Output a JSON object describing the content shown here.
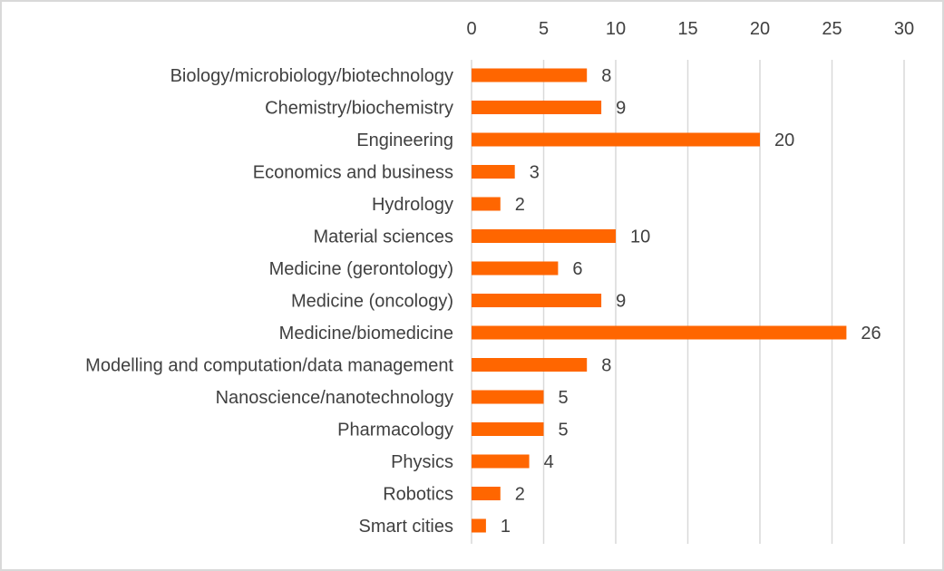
{
  "chart_data": {
    "type": "bar",
    "orientation": "horizontal",
    "categories": [
      "Biology/microbiology/biotechnology",
      "Chemistry/biochemistry",
      "Engineering",
      "Economics and business",
      "Hydrology",
      "Material sciences",
      "Medicine (gerontology)",
      "Medicine (oncology)",
      "Medicine/biomedicine",
      "Modelling and computation/data management",
      "Nanoscience/nanotechnology",
      "Pharmacology",
      "Physics",
      "Robotics",
      "Smart cities"
    ],
    "values": [
      8,
      9,
      20,
      3,
      2,
      10,
      6,
      9,
      26,
      8,
      5,
      5,
      4,
      2,
      1
    ],
    "xlim": [
      0,
      30
    ],
    "xticks": [
      0,
      5,
      10,
      15,
      20,
      25,
      30
    ],
    "x_axis_position": "top",
    "grid": true,
    "data_labels": true,
    "legend": "none",
    "title": "",
    "xlabel": "",
    "ylabel": "",
    "colors": {
      "bar": "#ff6600",
      "grid": "#d9d9d9",
      "text": "#404040",
      "frame": "#d9d9d9"
    }
  }
}
